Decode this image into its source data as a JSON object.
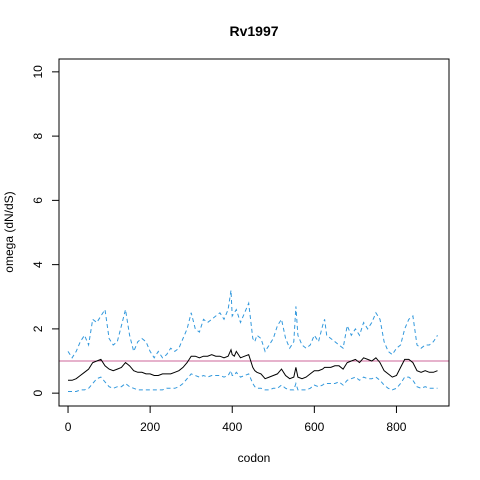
{
  "chart_data": {
    "type": "line",
    "title": "Rv1997",
    "xlabel": "codon",
    "ylabel": "omega (dN/dS)",
    "xlim": [
      -22,
      928
    ],
    "ylim": [
      -0.4,
      10.4
    ],
    "x_ticks": [
      0,
      200,
      400,
      600,
      800
    ],
    "y_ticks": [
      0,
      2,
      4,
      6,
      8,
      10
    ],
    "reference_line": {
      "y": 1,
      "color": "#cc6699"
    },
    "grid": false,
    "series": [
      {
        "role": "upper",
        "color": "#3399dd",
        "style": "dashed",
        "x": [
          0,
          10,
          20,
          30,
          40,
          50,
          60,
          70,
          80,
          90,
          100,
          110,
          120,
          130,
          140,
          150,
          160,
          170,
          180,
          190,
          200,
          210,
          220,
          230,
          240,
          250,
          260,
          270,
          280,
          290,
          300,
          310,
          320,
          330,
          340,
          350,
          360,
          370,
          380,
          390,
          397,
          400,
          405,
          410,
          420,
          430,
          440,
          450,
          455,
          460,
          470,
          480,
          490,
          500,
          510,
          520,
          530,
          540,
          550,
          555,
          560,
          570,
          580,
          590,
          600,
          610,
          620,
          625,
          630,
          640,
          650,
          660,
          670,
          680,
          690,
          700,
          710,
          720,
          730,
          740,
          750,
          760,
          770,
          780,
          790,
          800,
          810,
          820,
          830,
          840,
          850,
          860,
          870,
          880,
          890,
          900
        ],
        "y": [
          1.3,
          1.1,
          1.3,
          1.6,
          1.8,
          1.5,
          2.3,
          2.2,
          2.4,
          2.6,
          1.7,
          1.5,
          1.6,
          2.1,
          2.6,
          1.8,
          1.3,
          1.6,
          1.7,
          1.6,
          1.3,
          1.1,
          1.3,
          1.1,
          1.2,
          1.4,
          1.3,
          1.4,
          1.7,
          2.0,
          2.5,
          2.0,
          1.9,
          2.3,
          2.2,
          2.3,
          2.4,
          2.5,
          2.3,
          2.6,
          3.2,
          2.4,
          2.5,
          2.6,
          2.2,
          2.5,
          2.8,
          1.7,
          1.6,
          1.8,
          1.7,
          1.3,
          1.5,
          1.7,
          2.1,
          2.3,
          1.7,
          1.4,
          1.6,
          2.7,
          1.8,
          1.5,
          1.4,
          1.5,
          1.8,
          1.6,
          2.1,
          2.3,
          1.8,
          1.7,
          1.6,
          1.5,
          1.4,
          2.1,
          1.8,
          2.0,
          1.8,
          2.2,
          2.0,
          2.2,
          2.5,
          2.3,
          1.6,
          1.3,
          1.2,
          1.4,
          1.5,
          2.0,
          2.3,
          2.4,
          1.5,
          1.4,
          1.5,
          1.5,
          1.6,
          1.8
        ]
      },
      {
        "role": "estimate",
        "color": "#000000",
        "style": "solid",
        "x": [
          0,
          10,
          20,
          30,
          40,
          50,
          60,
          70,
          80,
          90,
          100,
          110,
          120,
          130,
          140,
          150,
          160,
          170,
          180,
          190,
          200,
          210,
          220,
          230,
          240,
          250,
          260,
          270,
          280,
          290,
          300,
          310,
          320,
          330,
          340,
          350,
          360,
          370,
          380,
          390,
          397,
          400,
          405,
          410,
          420,
          430,
          440,
          450,
          455,
          460,
          470,
          480,
          490,
          500,
          510,
          520,
          530,
          540,
          550,
          555,
          560,
          570,
          580,
          590,
          600,
          610,
          620,
          625,
          630,
          640,
          650,
          660,
          670,
          680,
          690,
          700,
          710,
          720,
          730,
          740,
          750,
          760,
          770,
          780,
          790,
          800,
          810,
          820,
          830,
          840,
          850,
          860,
          870,
          880,
          890,
          900
        ],
        "y": [
          0.4,
          0.4,
          0.45,
          0.55,
          0.65,
          0.75,
          0.95,
          1.0,
          1.05,
          0.85,
          0.75,
          0.7,
          0.75,
          0.8,
          0.95,
          0.85,
          0.7,
          0.65,
          0.65,
          0.6,
          0.6,
          0.55,
          0.55,
          0.6,
          0.6,
          0.6,
          0.65,
          0.7,
          0.8,
          0.95,
          1.15,
          1.15,
          1.1,
          1.15,
          1.15,
          1.2,
          1.15,
          1.15,
          1.1,
          1.15,
          1.35,
          1.2,
          1.15,
          1.3,
          1.1,
          1.15,
          1.2,
          0.8,
          0.7,
          0.65,
          0.6,
          0.45,
          0.5,
          0.55,
          0.6,
          0.75,
          0.55,
          0.45,
          0.5,
          0.8,
          0.5,
          0.45,
          0.5,
          0.6,
          0.7,
          0.7,
          0.75,
          0.8,
          0.8,
          0.8,
          0.85,
          0.85,
          0.75,
          0.95,
          1.0,
          1.05,
          0.95,
          1.1,
          1.05,
          1.0,
          1.1,
          0.95,
          0.7,
          0.6,
          0.5,
          0.55,
          0.8,
          1.05,
          1.05,
          0.95,
          0.7,
          0.65,
          0.7,
          0.65,
          0.65,
          0.7
        ]
      },
      {
        "role": "lower",
        "color": "#3399dd",
        "style": "dashed",
        "x": [
          0,
          10,
          20,
          30,
          40,
          50,
          60,
          70,
          80,
          90,
          100,
          110,
          120,
          130,
          140,
          150,
          160,
          170,
          180,
          190,
          200,
          210,
          220,
          230,
          240,
          250,
          260,
          270,
          280,
          290,
          300,
          310,
          320,
          330,
          340,
          350,
          360,
          370,
          380,
          390,
          397,
          400,
          405,
          410,
          420,
          430,
          440,
          450,
          455,
          460,
          470,
          480,
          490,
          500,
          510,
          520,
          530,
          540,
          550,
          555,
          560,
          570,
          580,
          590,
          600,
          610,
          620,
          625,
          630,
          640,
          650,
          660,
          670,
          680,
          690,
          700,
          710,
          720,
          730,
          740,
          750,
          760,
          770,
          780,
          790,
          800,
          810,
          820,
          830,
          840,
          850,
          860,
          870,
          880,
          890,
          900
        ],
        "y": [
          0.05,
          0.05,
          0.05,
          0.1,
          0.1,
          0.15,
          0.3,
          0.45,
          0.5,
          0.35,
          0.2,
          0.15,
          0.2,
          0.2,
          0.3,
          0.2,
          0.15,
          0.1,
          0.1,
          0.1,
          0.1,
          0.1,
          0.1,
          0.1,
          0.15,
          0.15,
          0.15,
          0.2,
          0.3,
          0.45,
          0.6,
          0.55,
          0.5,
          0.55,
          0.5,
          0.55,
          0.55,
          0.55,
          0.5,
          0.55,
          0.7,
          0.55,
          0.55,
          0.65,
          0.5,
          0.55,
          0.6,
          0.3,
          0.2,
          0.15,
          0.15,
          0.1,
          0.1,
          0.15,
          0.15,
          0.25,
          0.15,
          0.1,
          0.1,
          0.3,
          0.1,
          0.1,
          0.1,
          0.15,
          0.25,
          0.2,
          0.25,
          0.3,
          0.3,
          0.3,
          0.3,
          0.35,
          0.25,
          0.4,
          0.45,
          0.5,
          0.4,
          0.5,
          0.45,
          0.45,
          0.5,
          0.4,
          0.25,
          0.15,
          0.1,
          0.15,
          0.3,
          0.5,
          0.5,
          0.4,
          0.2,
          0.15,
          0.2,
          0.15,
          0.15,
          0.15
        ]
      }
    ]
  }
}
